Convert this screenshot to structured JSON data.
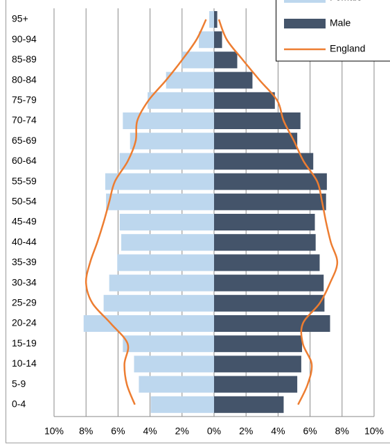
{
  "chart_data": {
    "type": "pyramid",
    "categories": [
      "95+",
      "90-94",
      "85-89",
      "80-84",
      "75-79",
      "70-74",
      "65-69",
      "60-64",
      "55-59",
      "50-54",
      "45-49",
      "40-44",
      "35-39",
      "30-34",
      "25-29",
      "20-24",
      "15-19",
      "10-14",
      "5-9",
      "0-4"
    ],
    "series": [
      {
        "name": "Female",
        "color": "#bdd7ee",
        "values": [
          -0.3,
          -0.95,
          -2.0,
          -3.0,
          -4.15,
          -5.7,
          -5.25,
          -5.9,
          -6.8,
          -6.75,
          -5.9,
          -5.8,
          -6.05,
          -6.55,
          -6.9,
          -8.15,
          -5.7,
          -5.0,
          -4.7,
          -3.95
        ]
      },
      {
        "name": "Male",
        "color": "#44546a",
        "values": [
          0.2,
          0.5,
          1.45,
          2.4,
          3.8,
          5.4,
          5.2,
          6.2,
          7.05,
          7.0,
          6.3,
          6.35,
          6.6,
          6.85,
          6.9,
          7.25,
          5.5,
          5.45,
          5.2,
          4.35
        ]
      },
      {
        "name": "England",
        "color": "#ed7d31",
        "values_female": [
          -0.5,
          -1.1,
          -2.0,
          -3.0,
          -4.1,
          -4.8,
          -4.9,
          -5.4,
          -6.2,
          -6.55,
          -6.9,
          -7.3,
          -7.75,
          -8.0,
          -7.6,
          -6.45,
          -5.4,
          -5.6,
          -5.45,
          -4.95
        ],
        "values_male": [
          0.3,
          0.8,
          1.8,
          2.85,
          3.95,
          4.35,
          5.0,
          5.6,
          6.45,
          6.75,
          7.0,
          7.3,
          7.7,
          7.25,
          6.6,
          5.55,
          5.55,
          6.1,
          5.85,
          5.25
        ]
      }
    ],
    "xlim": [
      -10,
      10
    ],
    "xticks": [
      {
        "value": -10,
        "label": "10%"
      },
      {
        "value": -8,
        "label": "8%"
      },
      {
        "value": -6,
        "label": "6%"
      },
      {
        "value": -4,
        "label": "4%"
      },
      {
        "value": -2,
        "label": "2%"
      },
      {
        "value": 0,
        "label": "0%"
      },
      {
        "value": 2,
        "label": "2%"
      },
      {
        "value": 4,
        "label": "4%"
      },
      {
        "value": 6,
        "label": "6%"
      },
      {
        "value": 8,
        "label": "8%"
      },
      {
        "value": 10,
        "label": "10%"
      }
    ],
    "grid": true
  }
}
